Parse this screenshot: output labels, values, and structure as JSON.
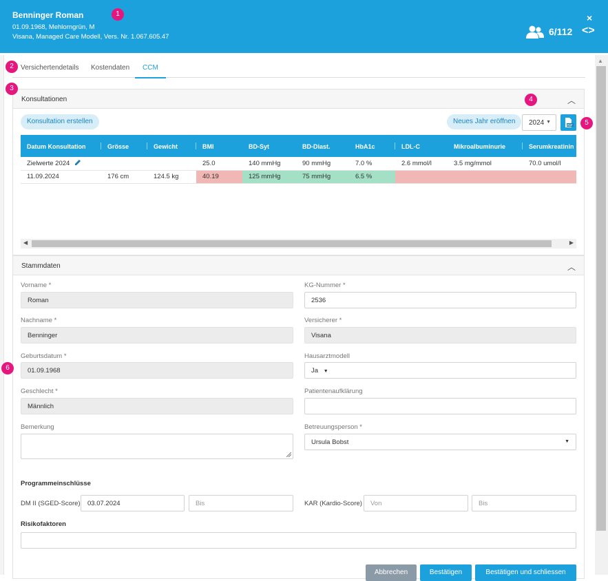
{
  "header": {
    "patient_name": "Benninger Roman",
    "details_line": "01.09.1968, Mehlorngrün, M",
    "insurance_line": "Visana, Managed Care Modell, Vers. Nr. 1.067.605.47",
    "counter": "6/112",
    "close_symbol": "×",
    "nav_symbol": "<>"
  },
  "markers": [
    "1",
    "2",
    "3",
    "4",
    "5",
    "6"
  ],
  "tabs": [
    {
      "label": "Versichertendetails"
    },
    {
      "label": "Kostendaten"
    },
    {
      "label": "CCM"
    }
  ],
  "consultations": {
    "title": "Konsultationen",
    "create_button": "Konsultation erstellen",
    "new_year_button": "Neues Jahr eröffnen",
    "year": "2024",
    "columns": [
      "Datum Konsultation",
      "Grösse",
      "Gewicht",
      "BMI",
      "BD-Syt",
      "BD-Diast.",
      "HbA1c",
      "LDL-C",
      "Mikroalbuminurie",
      "Serumkreatinin"
    ],
    "targets_row": [
      "Zielwerte 2024",
      "",
      "",
      "25.0",
      "140 mmHg",
      "90 mmHg",
      "7.0 %",
      "2.6 mmol/l",
      "3.5 mg/mmol",
      "70.0 umol/l"
    ],
    "data_row": [
      "11.09.2024",
      "176 cm",
      "124.5 kg",
      "40.19",
      "125 mmHg",
      "75 mmHg",
      "6.5 %",
      "",
      "",
      ""
    ]
  },
  "stammdaten": {
    "title": "Stammdaten",
    "vorname_label": "Vorname *",
    "vorname_value": "Roman",
    "kg_label": "KG-Nummer *",
    "kg_value": "2536",
    "nachname_label": "Nachname *",
    "nachname_value": "Benninger",
    "versicherer_label": "Versicherer *",
    "versicherer_value": "Visana",
    "geburtsdatum_label": "Geburtsdatum *",
    "geburtsdatum_value": "01.09.1968",
    "hausarzt_label": "Hausarztmodell",
    "hausarzt_value": "Ja",
    "geschlecht_label": "Geschlecht *",
    "geschlecht_value": "Männlich",
    "aufklaerung_label": "Patientenaufklärung",
    "bemerkung_label": "Bemerkung",
    "betreuung_label": "Betreuungsperson *",
    "betreuung_value": "Ursula Bobst",
    "program_label": "Programmeinschlüsse",
    "dm_label": "DM II (SGED-Score)",
    "dm_from": "03.07.2024",
    "dm_to_placeholder": "Bis",
    "kar_label": "KAR (Kardio-Score)",
    "kar_from_placeholder": "Von",
    "kar_to_placeholder": "Bis",
    "risk_label": "Risikofaktoren"
  },
  "footer": {
    "cancel": "Abbrechen",
    "confirm": "Bestätigen",
    "confirm_close": "Bestätigen und schliessen"
  }
}
